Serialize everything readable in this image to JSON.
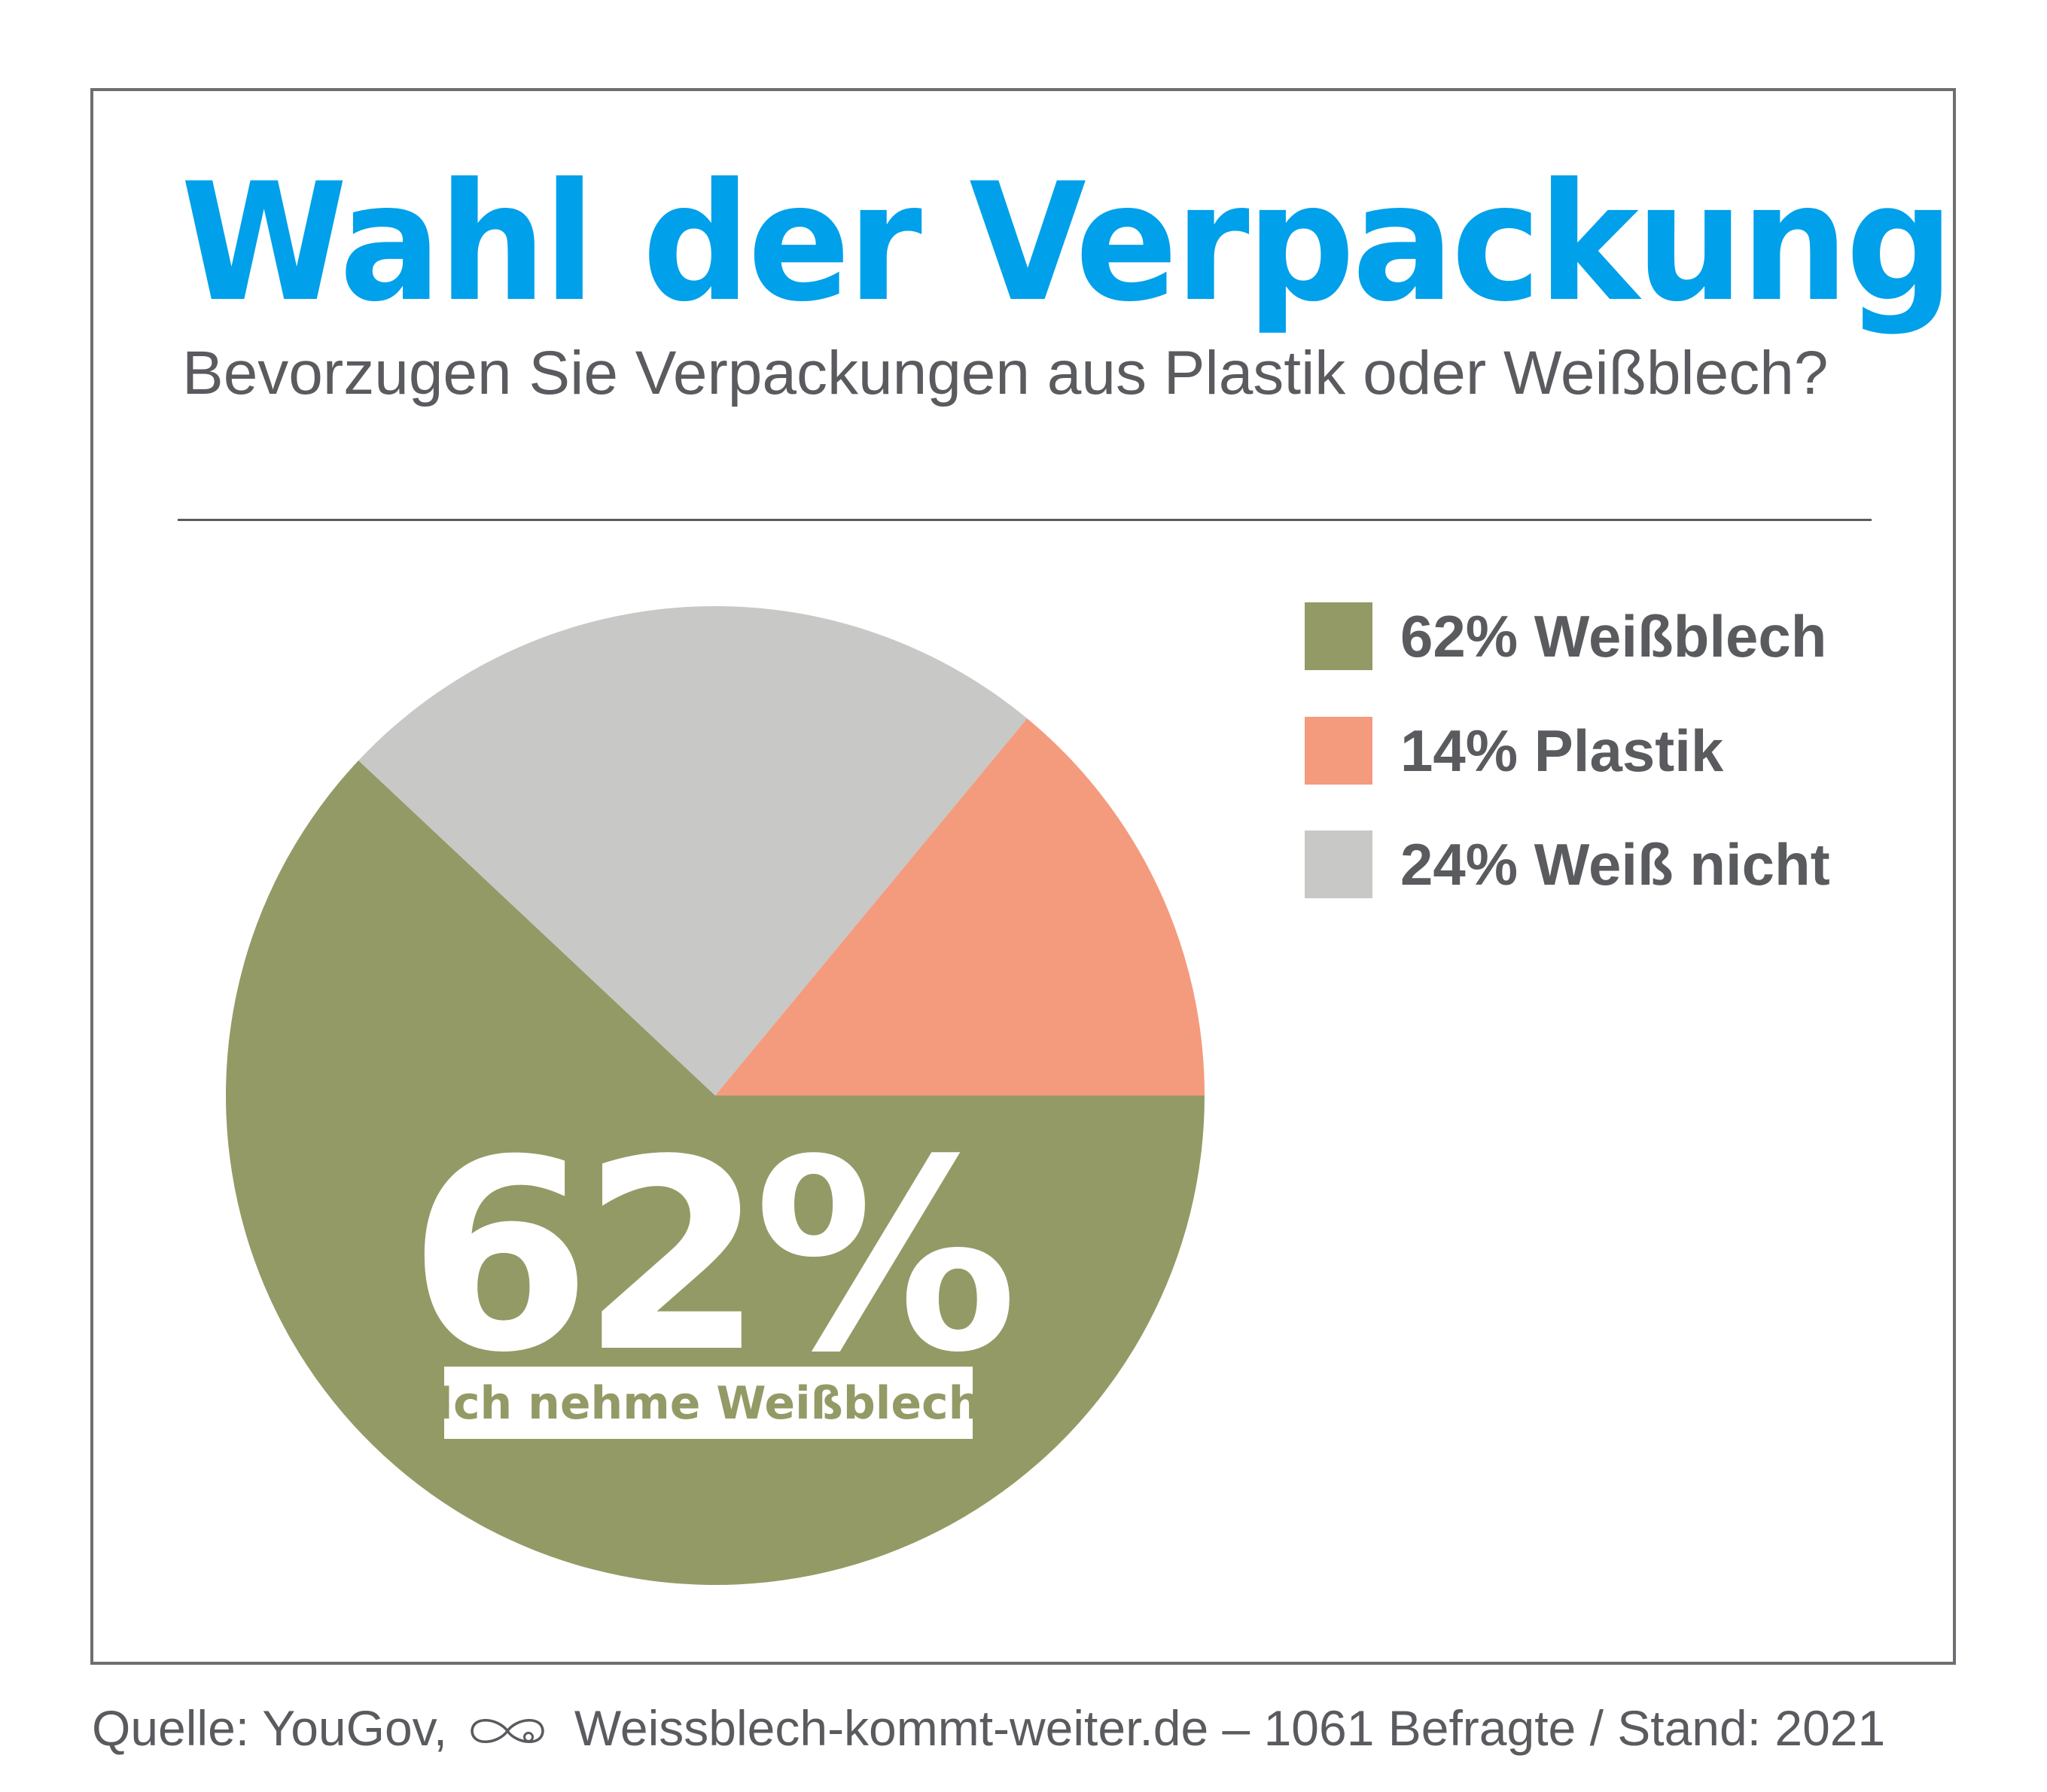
{
  "colors": {
    "title": "#00a0ea",
    "text_gray": "#5a5b5f",
    "frame": "#6d6e71",
    "weissblech": "#949a65",
    "plastik": "#f49b7d",
    "weiss_nicht": "#c8c8c7",
    "white": "#ffffff"
  },
  "header": {
    "title": "Wahl der Verpackung",
    "subtitle": "Bevorzugen Sie Verpackungen aus Plastik oder Weißblech?"
  },
  "chart_data": {
    "type": "pie",
    "title": "Wahl der Verpackung",
    "subtitle": "Bevorzugen Sie Verpackungen aus Plastik oder Weißblech?",
    "slices": [
      {
        "label": "Weißblech",
        "value": 62,
        "color": "#949a65"
      },
      {
        "label": "Plastik",
        "value": 14,
        "color": "#f49b7d"
      },
      {
        "label": "Weiß nicht",
        "value": 24,
        "color": "#c8c8c7"
      }
    ],
    "legend": {
      "position": "right",
      "entries": [
        "62% Weißblech",
        "14% Plastik",
        "24% Weiß nicht"
      ]
    },
    "annotation": {
      "big_value": "62%",
      "caption": "Ich nehme Weißblech"
    }
  },
  "footer": {
    "source_prefix": "Quelle: YouGov,",
    "website": "Weissblech-kommt-weiter.de",
    "details": "– 1061 Befragte / Stand: 2021"
  }
}
